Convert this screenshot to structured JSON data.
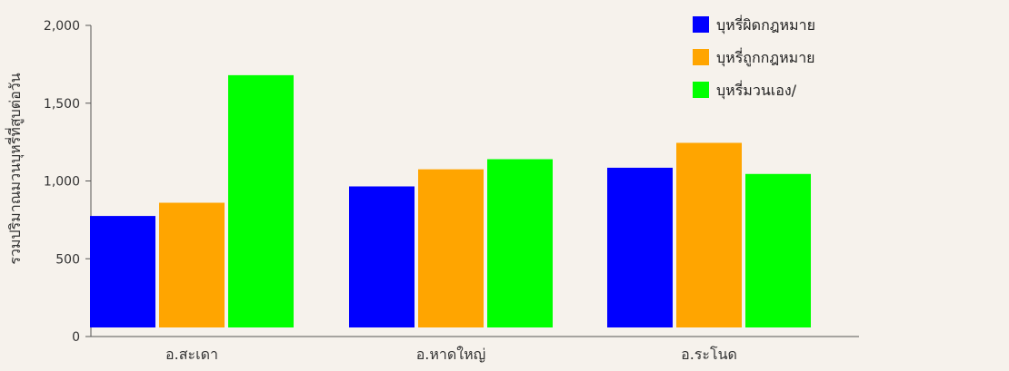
{
  "chart_data": {
    "type": "bar",
    "title": "",
    "xlabel": "",
    "ylabel": "รวมปริมาณมวนบุหรี่ที่สูบต่อวัน",
    "ylim": [
      0,
      2000
    ],
    "yticks": [
      0,
      500,
      1000,
      1500,
      2000
    ],
    "ytick_labels": [
      "0",
      "500",
      "1,000",
      "1,500",
      "2,000"
    ],
    "categories": [
      "อ.สะเดา",
      "อ.หาดใหญ่",
      "อ.ระโนด"
    ],
    "series": [
      {
        "name": "บุหรี่ผิดกฎหมาย",
        "color": "#0000ff",
        "values": [
          775,
          965,
          1085
        ]
      },
      {
        "name": "บุหรี่ถูกกฎหมาย",
        "color": "#ffa500",
        "values": [
          860,
          1075,
          1245
        ]
      },
      {
        "name": "บุหรี่มวนเอง/",
        "color": "#00ff00",
        "values": [
          1680,
          1140,
          1045
        ]
      }
    ],
    "grid": false,
    "legend_position": "top-right",
    "background": "#f6f2ec"
  }
}
